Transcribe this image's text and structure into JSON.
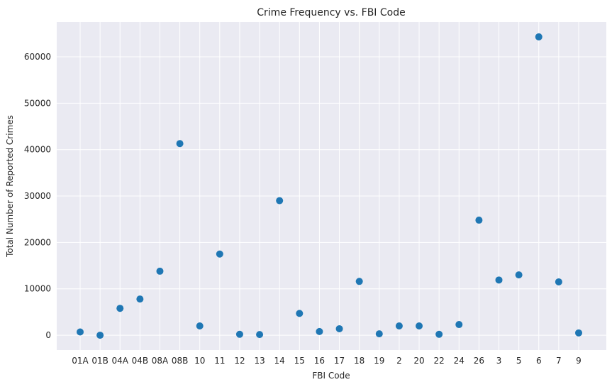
{
  "chart_data": {
    "type": "scatter",
    "title": "Crime Frequency vs. FBI Code",
    "xlabel": "FBI Code",
    "ylabel": "Total Number of Reported Crimes",
    "categories": [
      "01A",
      "01B",
      "04A",
      "04B",
      "08A",
      "08B",
      "10",
      "11",
      "12",
      "13",
      "14",
      "15",
      "16",
      "17",
      "18",
      "19",
      "2",
      "20",
      "22",
      "24",
      "26",
      "3",
      "5",
      "6",
      "7",
      "9"
    ],
    "values": [
      700,
      0,
      5800,
      7800,
      13800,
      41300,
      2000,
      17500,
      200,
      150,
      29000,
      4700,
      800,
      1400,
      11600,
      300,
      2000,
      2000,
      200,
      2300,
      24800,
      11900,
      13000,
      64300,
      11500,
      500
    ],
    "y_ticks": [
      0,
      10000,
      20000,
      30000,
      40000,
      50000,
      60000
    ],
    "ylim": [
      -3200,
      67500
    ],
    "grid": true,
    "marker_color": "#1f77b4",
    "background_color": "#eaeaf2"
  }
}
